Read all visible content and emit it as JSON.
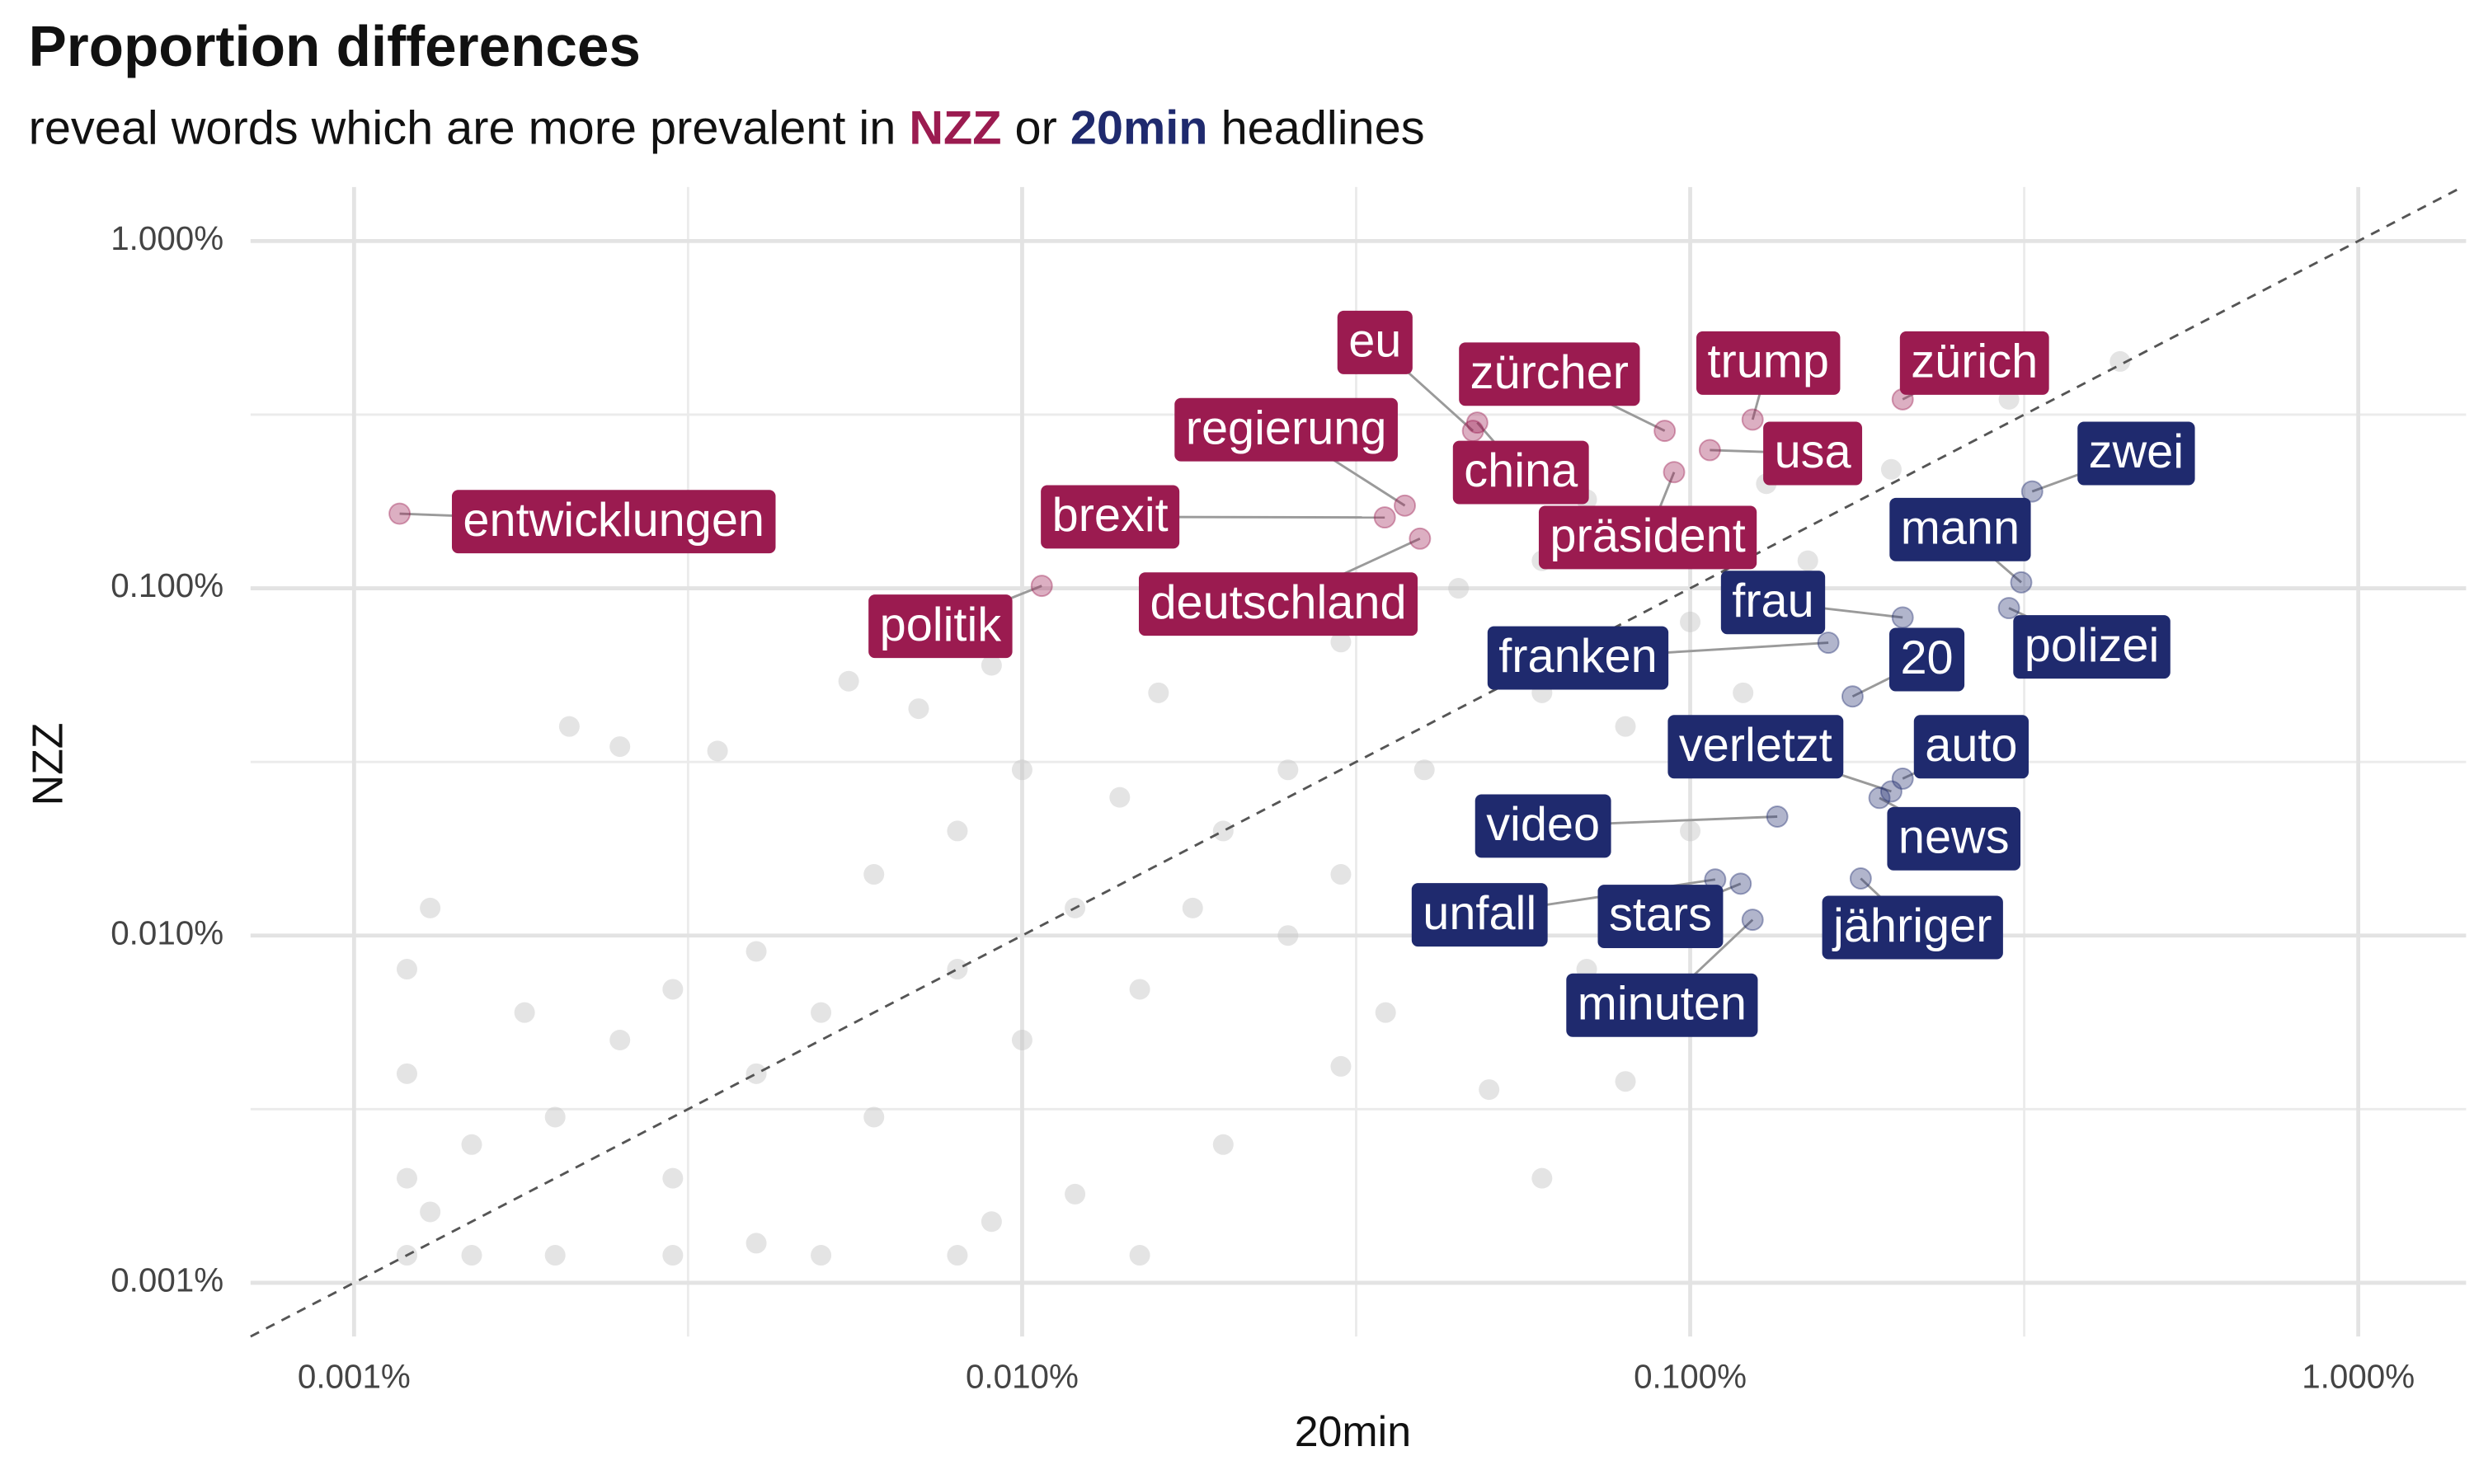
{
  "chart_data": {
    "type": "scatter",
    "title": "Proportion differences",
    "subtitle": [
      {
        "text": "reveal words which are more prevalent in "
      },
      {
        "text": "NZZ",
        "color": "#9b1b50",
        "bold": true
      },
      {
        "text": " or "
      },
      {
        "text": "20min",
        "color": "#1f2a6e",
        "bold": true
      },
      {
        "text": " headlines"
      }
    ],
    "xlabel": "20min",
    "ylabel": "NZZ",
    "xscale": "log",
    "yscale": "log",
    "xlim": [
      0.0007,
      1.45
    ],
    "ylim": [
      0.0007,
      1.43
    ],
    "xticks": [
      {
        "value": 0.001,
        "label": "0.001%"
      },
      {
        "value": 0.01,
        "label": "0.010%"
      },
      {
        "value": 0.1,
        "label": "0.100%"
      },
      {
        "value": 1,
        "label": "1.000%"
      }
    ],
    "yticks": [
      {
        "value": 0.001,
        "label": "0.001%"
      },
      {
        "value": 0.01,
        "label": "0.010%"
      },
      {
        "value": 0.1,
        "label": "0.100%"
      },
      {
        "value": 1,
        "label": "1.000%"
      }
    ],
    "xminorticks": [
      0.003162,
      0.03162,
      0.3162
    ],
    "yminorticks": [
      0.003162,
      0.03162,
      0.3162
    ],
    "grid": true,
    "identity_line": true,
    "background": {
      "color": "#c4c4c4",
      "x": [
        0.0012,
        0.0015,
        0.002,
        0.003,
        0.005,
        0.008,
        0.015,
        0.0012,
        0.0012,
        0.0012,
        0.0013,
        0.0015,
        0.002,
        0.0025,
        0.003,
        0.004,
        0.005,
        0.006,
        0.008,
        0.01,
        0.012,
        0.015,
        0.02,
        0.025,
        0.03,
        0.04,
        0.05,
        0.06,
        0.08,
        0.1,
        0.15,
        0.2,
        0.3,
        0.44,
        0.0021,
        0.0025,
        0.0035,
        0.0055,
        0.007,
        0.009,
        0.016,
        0.02,
        0.03,
        0.045,
        0.06,
        0.07,
        0.1,
        0.13,
        0.05,
        0.02,
        0.06,
        0.08,
        0.03,
        0.012,
        0.009,
        0.004,
        0.0013,
        0.0018,
        0.003,
        0.004,
        0.006,
        0.008,
        0.01,
        0.014,
        0.018,
        0.025,
        0.04,
        0.1,
        0.12,
        0.07,
        0.035
      ],
      "y": [
        0.0012,
        0.0012,
        0.0012,
        0.0012,
        0.0012,
        0.0012,
        0.0012,
        0.002,
        0.004,
        0.008,
        0.012,
        0.0025,
        0.003,
        0.005,
        0.002,
        0.004,
        0.006,
        0.003,
        0.008,
        0.005,
        0.012,
        0.007,
        0.02,
        0.01,
        0.015,
        0.03,
        0.02,
        0.05,
        0.04,
        0.08,
        0.12,
        0.22,
        0.35,
        0.45,
        0.04,
        0.035,
        0.034,
        0.054,
        0.045,
        0.06,
        0.05,
        0.08,
        0.07,
        0.1,
        0.12,
        0.18,
        0.15,
        0.2,
        0.0036,
        0.0025,
        0.002,
        0.0038,
        0.0042,
        0.0018,
        0.0015,
        0.0013,
        0.0016,
        0.006,
        0.007,
        0.009,
        0.015,
        0.02,
        0.03,
        0.025,
        0.012,
        0.03,
        0.012,
        0.02,
        0.05,
        0.008,
        0.006
      ]
    },
    "labeled_points": [
      {
        "label": "entwicklungen",
        "x": 0.00117,
        "y": 0.164,
        "color": "#9b1b50"
      },
      {
        "label": "politik",
        "x": 0.0107,
        "y": 0.1016,
        "color": "#9b1b50"
      },
      {
        "label": "brexit",
        "x": 0.0349,
        "y": 0.16,
        "color": "#9b1b50"
      },
      {
        "label": "regierung",
        "x": 0.0374,
        "y": 0.173,
        "color": "#9b1b50"
      },
      {
        "label": "deutschland",
        "x": 0.0394,
        "y": 0.139,
        "color": "#9b1b50"
      },
      {
        "label": "eu",
        "x": 0.0473,
        "y": 0.284,
        "color": "#9b1b50"
      },
      {
        "label": "zürcher",
        "x": 0.0916,
        "y": 0.284,
        "color": "#9b1b50"
      },
      {
        "label": "china",
        "x": 0.048,
        "y": 0.3,
        "color": "#9b1b50"
      },
      {
        "label": "präsident",
        "x": 0.0946,
        "y": 0.216,
        "color": "#9b1b50"
      },
      {
        "label": "usa",
        "x": 0.107,
        "y": 0.25,
        "color": "#9b1b50"
      },
      {
        "label": "trump",
        "x": 0.124,
        "y": 0.306,
        "color": "#9b1b50"
      },
      {
        "label": "zürich",
        "x": 0.208,
        "y": 0.35,
        "color": "#9b1b50"
      },
      {
        "label": "zwei",
        "x": 0.325,
        "y": 0.19,
        "color": "#1f2a6e"
      },
      {
        "label": "mann",
        "x": 0.313,
        "y": 0.104,
        "color": "#1f2a6e"
      },
      {
        "label": "polizei",
        "x": 0.3,
        "y": 0.0877,
        "color": "#1f2a6e"
      },
      {
        "label": "frau",
        "x": 0.208,
        "y": 0.0824,
        "color": "#1f2a6e"
      },
      {
        "label": "20",
        "x": 0.175,
        "y": 0.0488,
        "color": "#1f2a6e"
      },
      {
        "label": "franken",
        "x": 0.161,
        "y": 0.0697,
        "color": "#1f2a6e"
      },
      {
        "label": "verletzt",
        "x": 0.2,
        "y": 0.026,
        "color": "#1f2a6e"
      },
      {
        "label": "auto",
        "x": 0.208,
        "y": 0.0283,
        "color": "#1f2a6e"
      },
      {
        "label": "news",
        "x": 0.192,
        "y": 0.0249,
        "color": "#1f2a6e"
      },
      {
        "label": "video",
        "x": 0.135,
        "y": 0.022,
        "color": "#1f2a6e"
      },
      {
        "label": "jähriger",
        "x": 0.18,
        "y": 0.0146,
        "color": "#1f2a6e"
      },
      {
        "label": "stars",
        "x": 0.119,
        "y": 0.0141,
        "color": "#1f2a6e"
      },
      {
        "label": "unfall",
        "x": 0.109,
        "y": 0.0145,
        "color": "#1f2a6e"
      },
      {
        "label": "minuten",
        "x": 0.124,
        "y": 0.0111,
        "color": "#1f2a6e"
      }
    ]
  }
}
